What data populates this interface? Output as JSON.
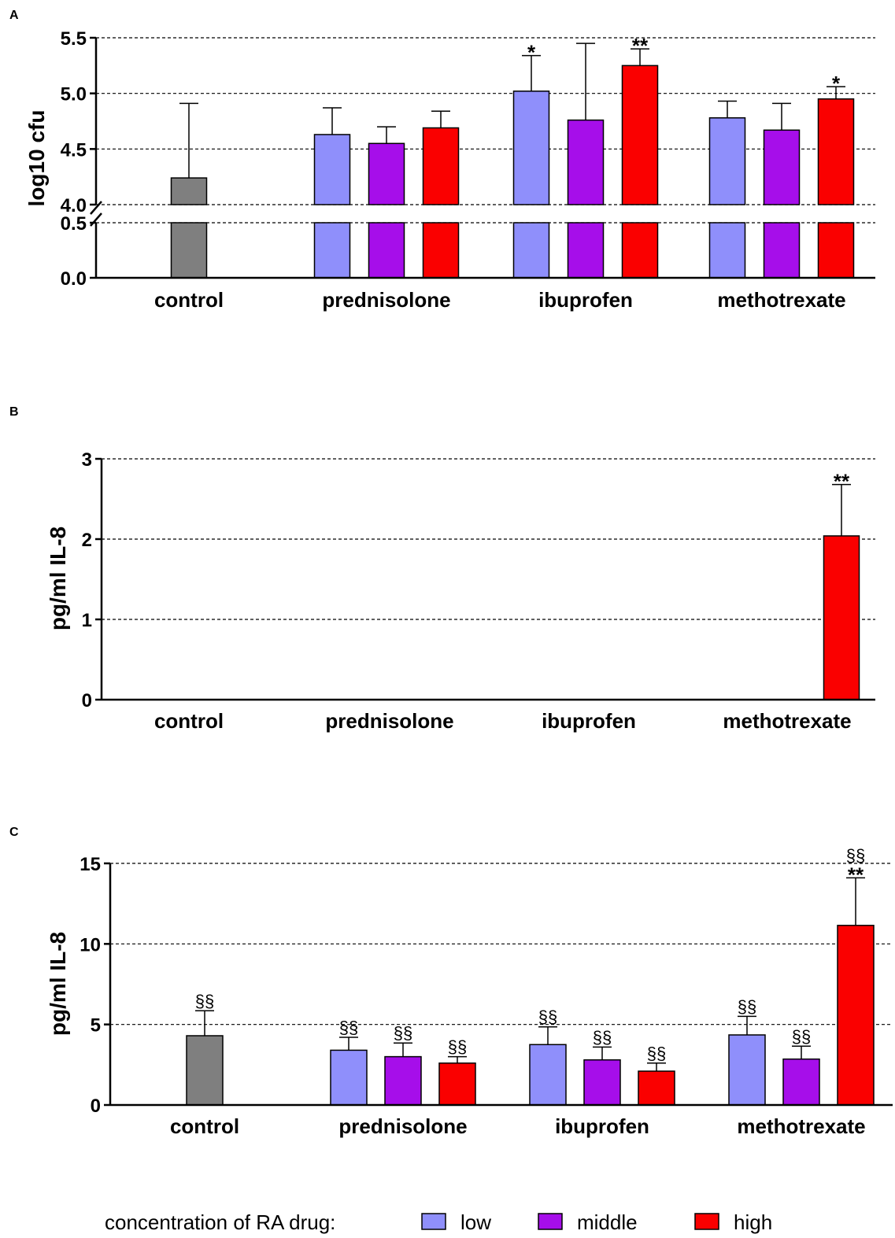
{
  "panels": {
    "A": "A",
    "B": "B",
    "C": "C"
  },
  "legend": {
    "title": "concentration of RA drug:",
    "items": [
      {
        "label": "low",
        "color": "#8f8ffb"
      },
      {
        "label": "middle",
        "color": "#a60eea"
      },
      {
        "label": "high",
        "color": "#fa0000"
      }
    ]
  },
  "colors": {
    "control": "#7f7f7f",
    "low": "#8f8ffb",
    "middle": "#a60eea",
    "high": "#fa0000"
  },
  "chart_data": [
    {
      "type": "bar",
      "panel": "A",
      "ylabel": "log10 cfu",
      "categories": [
        "control",
        "prednisolone",
        "ibuprofen",
        "methotrexate"
      ],
      "axis_break": {
        "lower": [
          0.0,
          0.5
        ],
        "upper": [
          4.0,
          5.5
        ]
      },
      "yticks": [
        "0.0",
        "0.5",
        "4.0",
        "4.5",
        "5.0",
        "5.5"
      ],
      "grid": true,
      "bars": [
        {
          "group": "control",
          "level": "control",
          "value": 4.24,
          "error": 0.67,
          "label": ""
        },
        {
          "group": "prednisolone",
          "level": "low",
          "value": 4.63,
          "error": 0.24,
          "label": ""
        },
        {
          "group": "prednisolone",
          "level": "middle",
          "value": 4.55,
          "error": 0.15,
          "label": ""
        },
        {
          "group": "prednisolone",
          "level": "high",
          "value": 4.69,
          "error": 0.15,
          "label": ""
        },
        {
          "group": "ibuprofen",
          "level": "low",
          "value": 5.02,
          "error": 0.32,
          "label": "*"
        },
        {
          "group": "ibuprofen",
          "level": "middle",
          "value": 4.76,
          "error": 0.69,
          "label": ""
        },
        {
          "group": "ibuprofen",
          "level": "high",
          "value": 5.25,
          "error": 0.15,
          "label": "**"
        },
        {
          "group": "methotrexate",
          "level": "low",
          "value": 4.78,
          "error": 0.15,
          "label": ""
        },
        {
          "group": "methotrexate",
          "level": "middle",
          "value": 4.67,
          "error": 0.24,
          "label": ""
        },
        {
          "group": "methotrexate",
          "level": "high",
          "value": 4.95,
          "error": 0.11,
          "label": "*"
        }
      ]
    },
    {
      "type": "bar",
      "panel": "B",
      "ylabel": "pg/ml IL-8",
      "categories": [
        "control",
        "prednisolone",
        "ibuprofen",
        "methotrexate"
      ],
      "ylim": [
        0,
        3
      ],
      "yticks": [
        "0",
        "1",
        "2",
        "3"
      ],
      "grid": true,
      "bars": [
        {
          "group": "methotrexate",
          "level": "high",
          "value": 2.04,
          "error": 0.64,
          "label": "**"
        }
      ]
    },
    {
      "type": "bar",
      "panel": "C",
      "ylabel": "pg/ml IL-8",
      "categories": [
        "control",
        "prednisolone",
        "ibuprofen",
        "methotrexate"
      ],
      "ylim": [
        0,
        15
      ],
      "yticks": [
        "0",
        "5",
        "10",
        "15"
      ],
      "grid": true,
      "bars": [
        {
          "group": "control",
          "level": "control",
          "value": 4.3,
          "error": 1.55,
          "label": "§§"
        },
        {
          "group": "prednisolone",
          "level": "low",
          "value": 3.4,
          "error": 0.8,
          "label": "§§"
        },
        {
          "group": "prednisolone",
          "level": "middle",
          "value": 3.0,
          "error": 0.85,
          "label": "§§"
        },
        {
          "group": "prednisolone",
          "level": "high",
          "value": 2.6,
          "error": 0.4,
          "label": "§§"
        },
        {
          "group": "ibuprofen",
          "level": "low",
          "value": 3.75,
          "error": 1.1,
          "label": "§§"
        },
        {
          "group": "ibuprofen",
          "level": "middle",
          "value": 2.8,
          "error": 0.8,
          "label": "§§"
        },
        {
          "group": "ibuprofen",
          "level": "high",
          "value": 2.1,
          "error": 0.5,
          "label": "§§"
        },
        {
          "group": "methotrexate",
          "level": "low",
          "value": 4.35,
          "error": 1.15,
          "label": "§§"
        },
        {
          "group": "methotrexate",
          "level": "middle",
          "value": 2.85,
          "error": 0.8,
          "label": "§§"
        },
        {
          "group": "methotrexate",
          "level": "high",
          "value": 11.15,
          "error": 2.95,
          "label": "§§\n**"
        }
      ]
    }
  ]
}
